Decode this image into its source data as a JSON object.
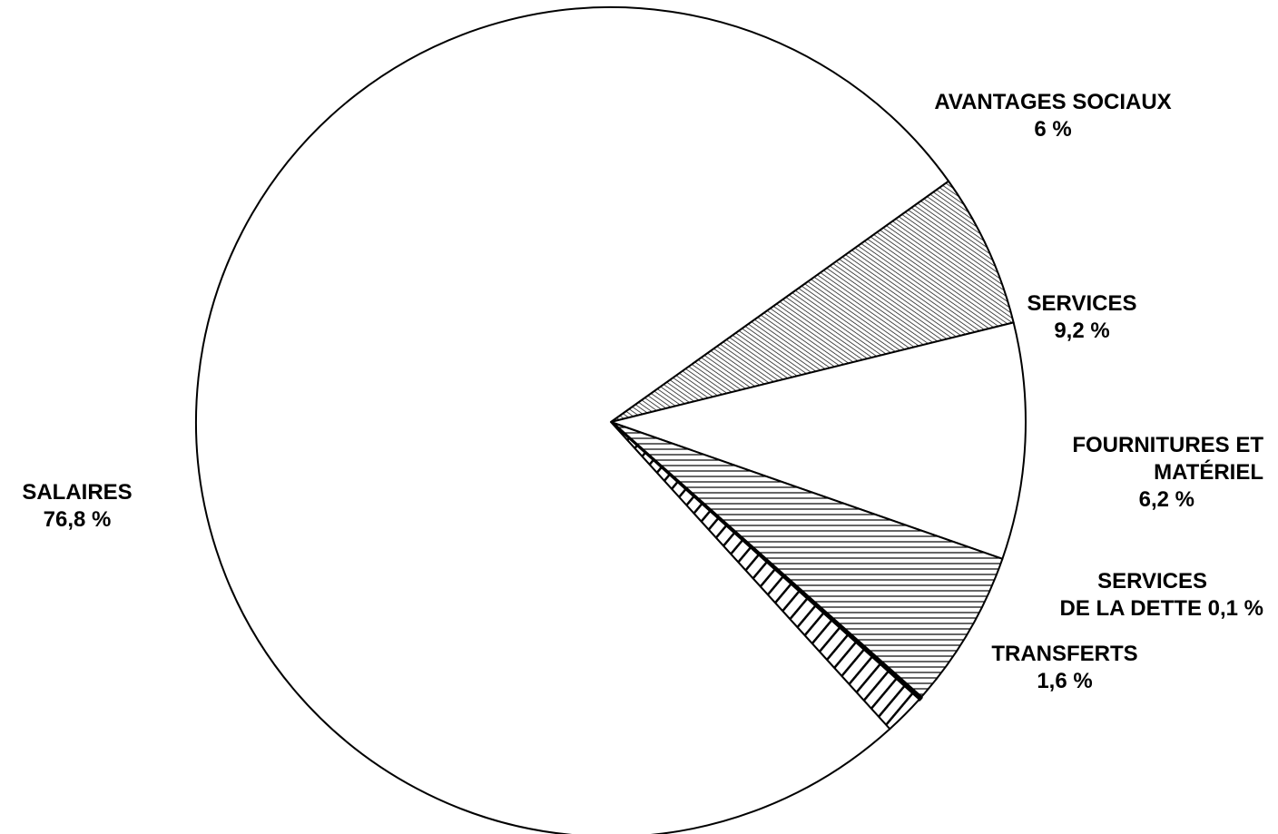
{
  "chart_data": {
    "type": "pie",
    "title": "",
    "slices": [
      {
        "id": "avantages",
        "label": "AVANTAGES SOCIAUX",
        "value": 6,
        "value_label": "6 %",
        "pattern": "fine-diagonal"
      },
      {
        "id": "services",
        "label": "SERVICES",
        "value": 9.2,
        "value_label": "9,2 %",
        "pattern": "none"
      },
      {
        "id": "fournitures",
        "label": "FOURNITURES ET MATÉRIEL",
        "label_line1": "FOURNITURES ET",
        "label_line2": "MATÉRIEL",
        "value": 6.2,
        "value_label": "6,2 %",
        "pattern": "horizontal"
      },
      {
        "id": "dette",
        "label": "SERVICES DE LA DETTE",
        "label_line1": "SERVICES",
        "label_line2": "DE LA DETTE 0,1 %",
        "value": 0.1,
        "value_label": "0,1 %",
        "pattern": "solid-black"
      },
      {
        "id": "transferts",
        "label": "TRANSFERTS",
        "value": 1.6,
        "value_label": "1,6 %",
        "pattern": "coarse-diagonal"
      },
      {
        "id": "salaires",
        "label": "SALAIRES",
        "value": 76.8,
        "value_label": "76,8 %",
        "pattern": "none"
      }
    ],
    "colors": {
      "stroke": "#000000",
      "fill": "#ffffff"
    }
  }
}
